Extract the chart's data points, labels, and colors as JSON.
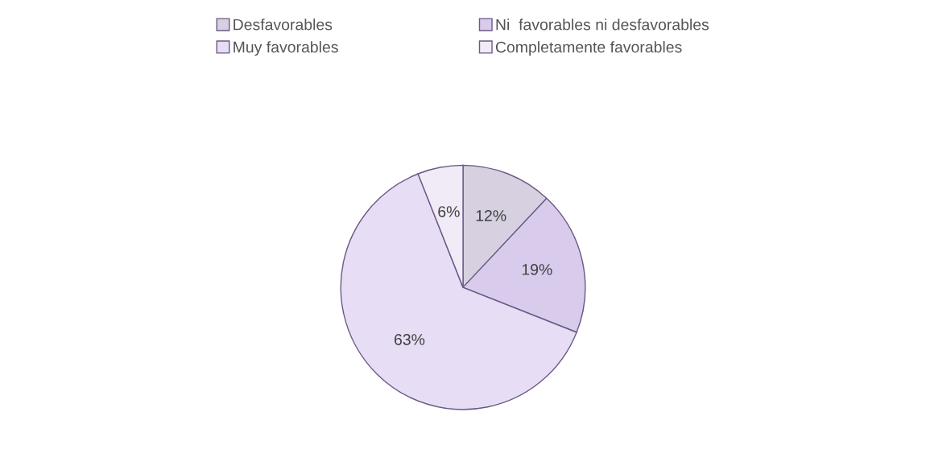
{
  "chart_data": {
    "type": "pie",
    "categories": [
      "Desfavorables",
      "Ni  favorables ni desfavorables",
      "Muy favorables",
      "Completamente favorables"
    ],
    "values": [
      12,
      19,
      63,
      6
    ],
    "colors": [
      "#d6d0e0",
      "#d8cbec",
      "#e7ddf4",
      "#f0ebf6"
    ],
    "value_labels": [
      "12%",
      "19%",
      "63%",
      "6%"
    ],
    "legend": "top"
  }
}
